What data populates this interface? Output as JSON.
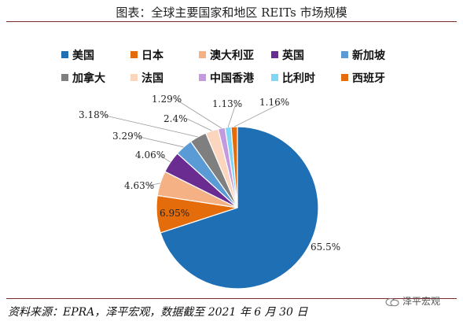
{
  "title": "图表：全球主要国家和地区 REITs 市场规模",
  "source": "资料来源：EPRA，泽平宏观，数据截至 2021 年 6 月 30 日",
  "watermark": "泽平宏观",
  "chart_data": {
    "type": "pie",
    "title": "图表：全球主要国家和地区 REITs 市场规模",
    "legend_position": "top",
    "start_angle_deg": 0,
    "direction": "clockwise",
    "slices": [
      {
        "name": "美国",
        "value": 65.5,
        "label": "65.5%",
        "color": "#1f6fb5"
      },
      {
        "name": "日本",
        "value": 6.95,
        "label": "6.95%",
        "color": "#e46c0a"
      },
      {
        "name": "澳大利亚",
        "value": 4.63,
        "label": "4.63%",
        "color": "#f5b183"
      },
      {
        "name": "英国",
        "value": 4.06,
        "label": "4.06%",
        "color": "#6a2c91"
      },
      {
        "name": "新加坡",
        "value": 3.29,
        "label": "3.29%",
        "color": "#5b9bd5"
      },
      {
        "name": "加拿大",
        "value": 3.18,
        "label": "3.18%",
        "color": "#7f7f7f"
      },
      {
        "name": "法国",
        "value": 2.4,
        "label": "2.4%",
        "color": "#fbd5bd"
      },
      {
        "name": "中国香港",
        "value": 1.29,
        "label": "1.29%",
        "color": "#c39ae0"
      },
      {
        "name": "比利时",
        "value": 1.13,
        "label": "1.13%",
        "color": "#7fd6f5"
      },
      {
        "name": "西班牙",
        "value": 1.16,
        "label": "1.16%",
        "color": "#e46c0a"
      }
    ]
  }
}
